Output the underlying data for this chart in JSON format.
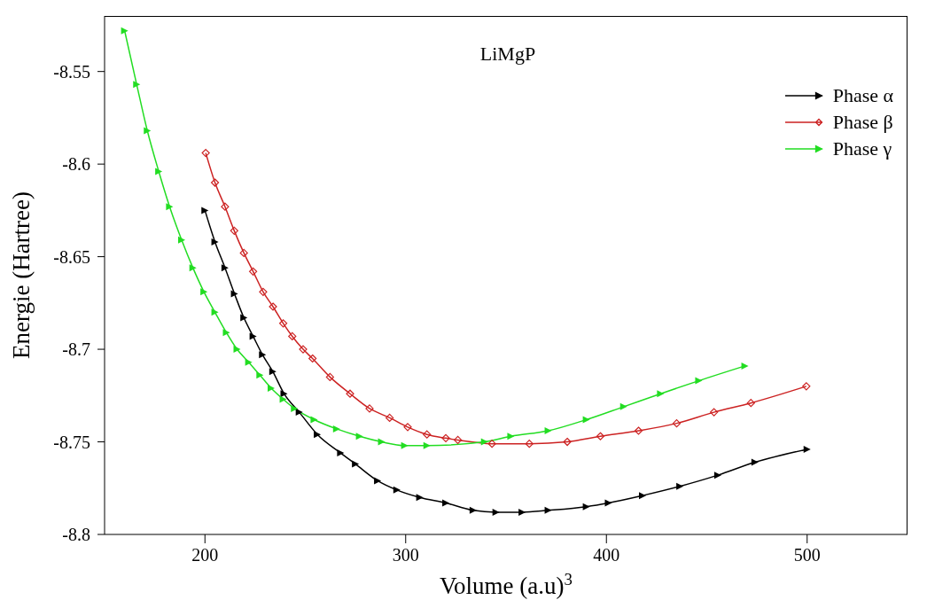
{
  "chart_data": {
    "type": "line",
    "title": "LiMgP",
    "xlabel": "Volume (a.u)$^{3}$",
    "ylabel": "Energie (Hartree)",
    "xlim": [
      150,
      550
    ],
    "xticks": [
      200,
      300,
      400,
      500
    ],
    "ylim": [
      -8.8,
      -8.52
    ],
    "yticks": [
      -8.8,
      -8.75,
      -8.7,
      -8.65,
      -8.6,
      -8.55
    ],
    "grid": false,
    "legend": "top right",
    "line_style": "solid",
    "series": [
      {
        "name": "Phase α",
        "color": "#000000",
        "marker": "triangle",
        "x": [
          200,
          205,
          210,
          214.7,
          219.4,
          224,
          228.7,
          233.8,
          239.4,
          247,
          256,
          267.6,
          275,
          286,
          295.6,
          307,
          320,
          333.6,
          345,
          358,
          371,
          390,
          401,
          418,
          436.6,
          455.5,
          474,
          500
        ],
        "values": [
          -8.625,
          -8.642,
          -8.656,
          -8.67,
          -8.683,
          -8.693,
          -8.703,
          -8.712,
          -8.724,
          -8.734,
          -8.746,
          -8.756,
          -8.762,
          -8.771,
          -8.776,
          -8.78,
          -8.783,
          -8.787,
          -8.788,
          -8.788,
          -8.787,
          -8.785,
          -8.783,
          -8.779,
          -8.774,
          -8.768,
          -8.761,
          -8.754
        ]
      },
      {
        "name": "Phase β",
        "color": "#cc2222",
        "marker": "diamond",
        "x": [
          200.4,
          205,
          210,
          214.6,
          219.4,
          224,
          229,
          233.9,
          239,
          243.5,
          248.9,
          253.6,
          262.3,
          272.3,
          282,
          292,
          301,
          310.6,
          320,
          326,
          343,
          361.6,
          380.5,
          397,
          416,
          435,
          453.6,
          472,
          499.6
        ],
        "values": [
          -8.594,
          -8.61,
          -8.623,
          -8.636,
          -8.648,
          -8.658,
          -8.669,
          -8.677,
          -8.686,
          -8.693,
          -8.7,
          -8.705,
          -8.715,
          -8.724,
          -8.732,
          -8.737,
          -8.742,
          -8.746,
          -8.748,
          -8.749,
          -8.751,
          -8.751,
          -8.75,
          -8.747,
          -8.744,
          -8.74,
          -8.734,
          -8.729,
          -8.72
        ]
      },
      {
        "name": "Phase γ",
        "color": "#22dd22",
        "marker": "triangle",
        "x": [
          160,
          166,
          171.3,
          177,
          182.4,
          188.4,
          194,
          199.5,
          205,
          210.7,
          216,
          221.8,
          227.4,
          233,
          239,
          244.6,
          254.4,
          265.6,
          277,
          288,
          299.5,
          310.6,
          339.3,
          352.4,
          371,
          390,
          408.6,
          427,
          446,
          469
        ],
        "values": [
          -8.528,
          -8.557,
          -8.582,
          -8.604,
          -8.623,
          -8.641,
          -8.656,
          -8.669,
          -8.68,
          -8.691,
          -8.7,
          -8.707,
          -8.714,
          -8.721,
          -8.727,
          -8.732,
          -8.738,
          -8.743,
          -8.747,
          -8.75,
          -8.752,
          -8.752,
          -8.75,
          -8.747,
          -8.744,
          -8.738,
          -8.731,
          -8.724,
          -8.717,
          -8.709
        ]
      }
    ]
  }
}
